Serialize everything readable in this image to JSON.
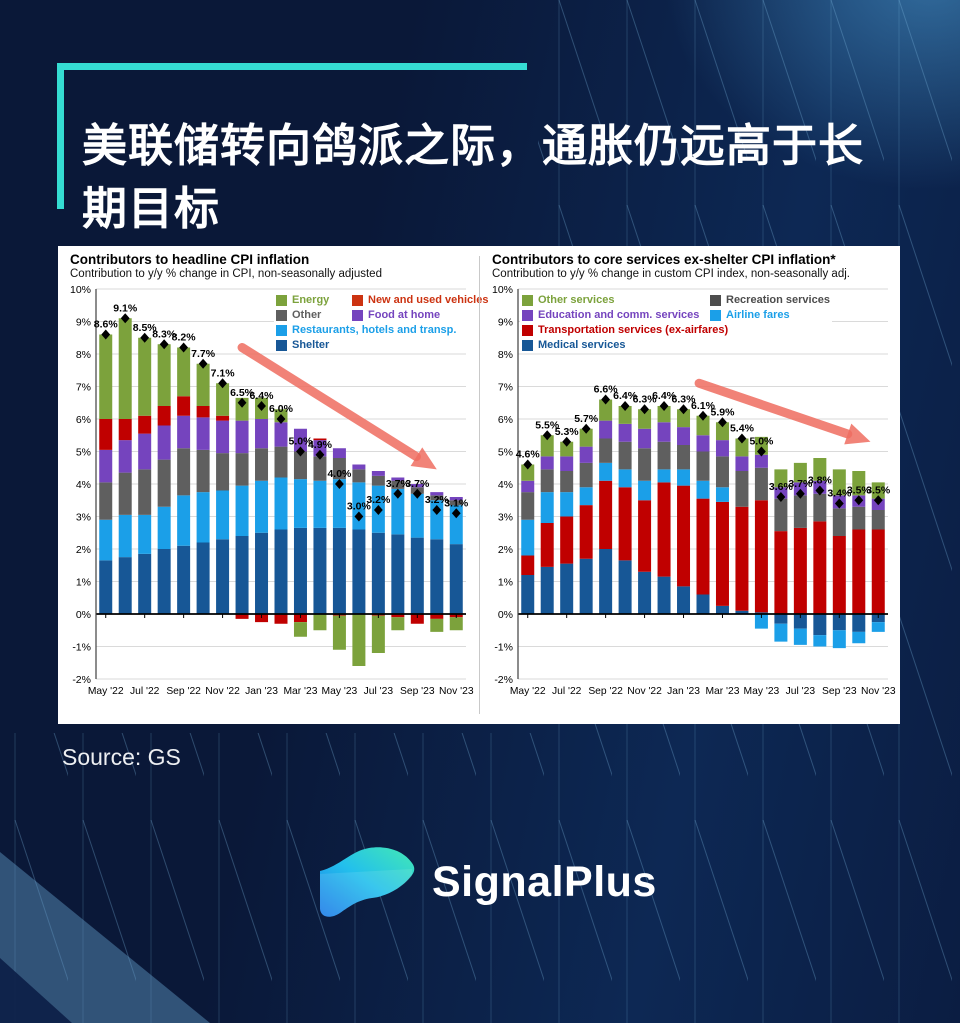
{
  "page": {
    "background_color": "#0A1B3E",
    "accent_color": "#35DCD2",
    "panel_color": "#FFFFFF"
  },
  "header": {
    "title_lines": [
      "美联储转向鸽派之际，通胀仍远高于长",
      "期目标"
    ]
  },
  "footer": {
    "source": "Source: GS",
    "brand": "SignalPlus"
  },
  "chart_data": [
    {
      "type": "bar",
      "stacked": true,
      "title": "Contributors to headline CPI inflation",
      "subtitle": "Contribution to y/y % change in CPI, non-seasonally adjusted",
      "ylim": [
        -2,
        10
      ],
      "y_tick_step": 1,
      "grid": true,
      "x_tick_every": 2,
      "marker": "black-diamond",
      "months": [
        "May '22",
        "Jun '22",
        "Jul '22",
        "Aug '22",
        "Sep '22",
        "Oct '22",
        "Nov '22",
        "Dec '22",
        "Jan '23",
        "Feb '23",
        "Mar '23",
        "Apr '23",
        "May '23",
        "Jun '23",
        "Jul '23",
        "Aug '23",
        "Sep '23",
        "Oct '23",
        "Nov '23"
      ],
      "totals": [
        8.6,
        9.1,
        8.5,
        8.3,
        8.2,
        7.7,
        7.1,
        6.5,
        6.4,
        6.0,
        5.0,
        4.9,
        4.0,
        3.0,
        3.2,
        3.7,
        3.7,
        3.2,
        3.1
      ],
      "series": [
        {
          "name": "Shelter",
          "color": "#175796",
          "values": [
            1.65,
            1.75,
            1.85,
            2.0,
            2.1,
            2.2,
            2.3,
            2.4,
            2.5,
            2.6,
            2.65,
            2.65,
            2.65,
            2.6,
            2.5,
            2.45,
            2.35,
            2.3,
            2.15
          ]
        },
        {
          "name": "Restaurants, hotels and transp.",
          "color": "#1B9FE8",
          "values": [
            1.25,
            1.3,
            1.2,
            1.3,
            1.55,
            1.55,
            1.5,
            1.55,
            1.6,
            1.6,
            1.5,
            1.45,
            1.5,
            1.45,
            1.45,
            1.4,
            1.35,
            1.2,
            1.2
          ]
        },
        {
          "name": "Other",
          "color": "#5F5F5F",
          "values": [
            1.15,
            1.3,
            1.4,
            1.45,
            1.45,
            1.3,
            1.15,
            1.0,
            1.0,
            0.95,
            0.85,
            0.75,
            0.65,
            0.4,
            0.3,
            0.25,
            0.2,
            0.15,
            0.15
          ]
        },
        {
          "name": "Food at home",
          "color": "#7544BE",
          "values": [
            1.0,
            1.0,
            1.1,
            1.05,
            1.0,
            1.0,
            1.0,
            1.0,
            0.9,
            0.75,
            0.7,
            0.5,
            0.3,
            0.15,
            0.15,
            0.1,
            0.1,
            0.1,
            0.1
          ]
        },
        {
          "name": "New and used vehicles",
          "color": "#C00000",
          "values": [
            0.95,
            0.65,
            0.55,
            0.6,
            0.6,
            0.35,
            0.15,
            -0.15,
            -0.25,
            -0.3,
            -0.25,
            0.05,
            -0.05,
            0.0,
            -0.05,
            -0.1,
            -0.3,
            -0.15,
            -0.1
          ]
        },
        {
          "name": "Energy",
          "color": "#7CA23C",
          "values": [
            2.6,
            3.1,
            2.4,
            1.9,
            1.5,
            1.3,
            1.0,
            0.7,
            0.65,
            0.4,
            -0.45,
            -0.5,
            -1.05,
            -1.6,
            -1.15,
            -0.4,
            0.0,
            -0.4,
            -0.4
          ]
        }
      ],
      "legend": [
        {
          "label": "Energy",
          "color": "#7CA23C"
        },
        {
          "label": "New and used vehicles",
          "color": "#CC3311"
        },
        {
          "label": "Other",
          "color": "#5F5F5F"
        },
        {
          "label": "Food at home",
          "color": "#7544BE"
        },
        {
          "label": "Restaurants, hotels and transp.",
          "color": "#1B9FE8",
          "span": true
        },
        {
          "label": "Shelter",
          "color": "#175796",
          "span": true
        }
      ],
      "arrow": {
        "color": "#EF6D60",
        "from": [
          7.0,
          8.2
        ],
        "to": [
          17.0,
          4.45
        ]
      }
    },
    {
      "type": "bar",
      "stacked": true,
      "title": "Contributors to core services ex-shelter CPI inflation*",
      "subtitle": "Contribution to y/y % change in custom CPI index, non-seasonally adj.",
      "ylim": [
        -2,
        10
      ],
      "y_tick_step": 1,
      "grid": true,
      "x_tick_every": 2,
      "marker": "black-diamond",
      "months": [
        "May '22",
        "Jun '22",
        "Jul '22",
        "Aug '22",
        "Sep '22",
        "Oct '22",
        "Nov '22",
        "Dec '22",
        "Jan '23",
        "Feb '23",
        "Mar '23",
        "Apr '23",
        "May '23",
        "Jun '23",
        "Jul '23",
        "Aug '23",
        "Sep '23",
        "Oct '23",
        "Nov '23"
      ],
      "totals": [
        4.6,
        5.5,
        5.3,
        5.7,
        6.6,
        6.4,
        6.3,
        6.4,
        6.3,
        6.1,
        5.9,
        5.4,
        5.0,
        3.6,
        3.7,
        3.8,
        3.4,
        3.5,
        3.5
      ],
      "series": [
        {
          "name": "Medical services",
          "color": "#175796",
          "values": [
            1.2,
            1.45,
            1.55,
            1.7,
            2.0,
            1.65,
            1.3,
            1.15,
            0.85,
            0.6,
            0.25,
            0.1,
            0.05,
            -0.3,
            -0.45,
            -0.65,
            -0.5,
            -0.55,
            -0.25
          ]
        },
        {
          "name": "Transportation services (ex-airfares)",
          "color": "#C00000",
          "values": [
            0.6,
            1.35,
            1.45,
            1.65,
            2.1,
            2.25,
            2.2,
            2.9,
            3.1,
            2.95,
            3.2,
            3.2,
            3.45,
            2.55,
            2.65,
            2.85,
            2.4,
            2.6,
            2.6
          ]
        },
        {
          "name": "Airline fares",
          "color": "#1B9FE8",
          "values": [
            1.1,
            0.95,
            0.75,
            0.55,
            0.55,
            0.55,
            0.6,
            0.4,
            0.5,
            0.55,
            0.45,
            0.0,
            -0.45,
            -0.55,
            -0.5,
            -0.35,
            -0.55,
            -0.35,
            -0.3
          ]
        },
        {
          "name": "Recreation services",
          "color": "#5F5F5F",
          "values": [
            0.85,
            0.7,
            0.65,
            0.75,
            0.75,
            0.85,
            1.0,
            0.85,
            0.75,
            0.9,
            0.95,
            1.1,
            1.0,
            1.0,
            1.0,
            0.85,
            0.85,
            0.7,
            0.6
          ]
        },
        {
          "name": "Education and comm. services",
          "color": "#7544BE",
          "values": [
            0.35,
            0.4,
            0.45,
            0.5,
            0.55,
            0.55,
            0.6,
            0.6,
            0.55,
            0.5,
            0.5,
            0.45,
            0.4,
            0.35,
            0.4,
            0.4,
            0.4,
            0.35,
            0.35
          ]
        },
        {
          "name": "Other services",
          "color": "#7CA23C",
          "values": [
            0.5,
            0.65,
            0.45,
            0.55,
            0.65,
            0.55,
            0.6,
            0.5,
            0.55,
            0.6,
            0.55,
            0.55,
            0.55,
            0.55,
            0.6,
            0.7,
            0.8,
            0.75,
            0.5
          ]
        }
      ],
      "legend": [
        {
          "label": "Other services",
          "color": "#7CA23C"
        },
        {
          "label": "Recreation services",
          "color": "#4D4D4D"
        },
        {
          "label": "Education and comm. services",
          "color": "#7544BE"
        },
        {
          "label": "Airline fares",
          "color": "#1B9FE8"
        },
        {
          "label": "Transportation services (ex-airfares)",
          "color": "#C00000",
          "span": true
        },
        {
          "label": "Medical services",
          "color": "#175796",
          "span": true
        }
      ],
      "arrow": {
        "color": "#EF6D60",
        "from": [
          8.8,
          7.1
        ],
        "to": [
          17.6,
          5.3
        ]
      }
    }
  ]
}
